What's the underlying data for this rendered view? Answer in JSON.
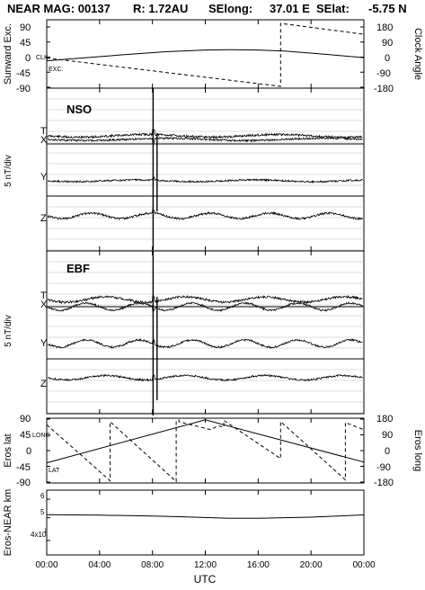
{
  "header": {
    "instrument": "NEAR MAG: 00137",
    "range": "R: 1.72AU",
    "selong_label": "SElong:",
    "selong_value": "37.01 E",
    "selat_label": "SElat:",
    "selat_value": "-5.75 N"
  },
  "colors": {
    "ink": "#000000",
    "background": "#ffffff",
    "grid": "#bdbdbd"
  },
  "chart_data": [
    {
      "type": "line",
      "panel": "clock-angle",
      "left_axis": {
        "label": "Sunward Exc.",
        "ticks": [
          "90",
          "45",
          "0",
          "-45",
          "-90"
        ],
        "range": [
          -90,
          90
        ]
      },
      "right_axis": {
        "label": "Clock Angle",
        "ticks": [
          "180",
          "90",
          "0",
          "-90",
          "-180"
        ],
        "range": [
          -180,
          180
        ]
      },
      "annotations": [
        "CLK",
        "EXC."
      ],
      "series": [
        {
          "name": "CLK",
          "axis": "right",
          "style": "dashed",
          "x": [
            0,
            17.7,
            17.7,
            24
          ],
          "y": [
            -18,
            -180,
            180,
            118
          ]
        },
        {
          "name": "EXC.",
          "axis": "left",
          "x": [
            0,
            3,
            6,
            9,
            12,
            14,
            16,
            18,
            21,
            24
          ],
          "y": [
            -17,
            -8,
            1,
            9,
            14,
            15,
            14,
            11,
            2,
            -8
          ]
        }
      ]
    },
    {
      "type": "line",
      "panel": "field-nso",
      "title": "NSO",
      "ylabel": "5 nT/div",
      "trace_labels": [
        "T",
        "X",
        "Y",
        "Z"
      ]
    },
    {
      "type": "line",
      "panel": "field-ebf",
      "title": "EBF",
      "ylabel": "5 nT/div",
      "trace_labels": [
        "T",
        "X",
        "Y",
        "Z"
      ]
    },
    {
      "type": "line",
      "panel": "eros-position",
      "left_axis": {
        "label": "Eros lat",
        "ticks": [
          "90",
          "45",
          "0",
          "-45",
          "-90"
        ],
        "range": [
          -90,
          90
        ]
      },
      "right_axis": {
        "label": "Eros long",
        "ticks": [
          "180",
          "90",
          "0",
          "-90",
          "-180"
        ],
        "range": [
          -180,
          180
        ]
      },
      "annotations": [
        "LONG",
        "LAT"
      ],
      "series": [
        {
          "name": "LONG",
          "axis": "right",
          "style": "dashed",
          "x": [
            0,
            4.8,
            4.8,
            9.8,
            9.8,
            10.0,
            10.0,
            12.4,
            13.0,
            13.4,
            13.4,
            17.7,
            17.7,
            22.6,
            22.6,
            24
          ],
          "y": [
            148,
            -173,
            165,
            -177,
            170,
            175,
            165,
            120,
            142,
            133,
            173,
            -46,
            166,
            -167,
            160,
            120
          ]
        },
        {
          "name": "LAT",
          "axis": "left",
          "x": [
            0,
            12,
            24
          ],
          "y": [
            -35,
            88,
            -33
          ]
        }
      ]
    },
    {
      "type": "line",
      "panel": "eros-distance",
      "ylabel": "Eros-NEAR km",
      "ylog": true,
      "yticks": [
        "6",
        "5",
        "4x10",
        "1"
      ],
      "ylim": [
        35,
        65
      ],
      "series": [
        {
          "x": [
            0,
            4,
            8,
            10,
            12,
            14,
            16,
            20,
            24
          ],
          "y": [
            51.5,
            51.3,
            50.9,
            50.5,
            50.1,
            49.7,
            49.7,
            50.3,
            51.4
          ]
        }
      ]
    }
  ],
  "x_axis": {
    "label": "UTC",
    "ticks": [
      "00:00",
      "04:00",
      "08:00",
      "12:00",
      "16:00",
      "20:00",
      "00:00"
    ],
    "range": [
      0,
      24
    ]
  }
}
